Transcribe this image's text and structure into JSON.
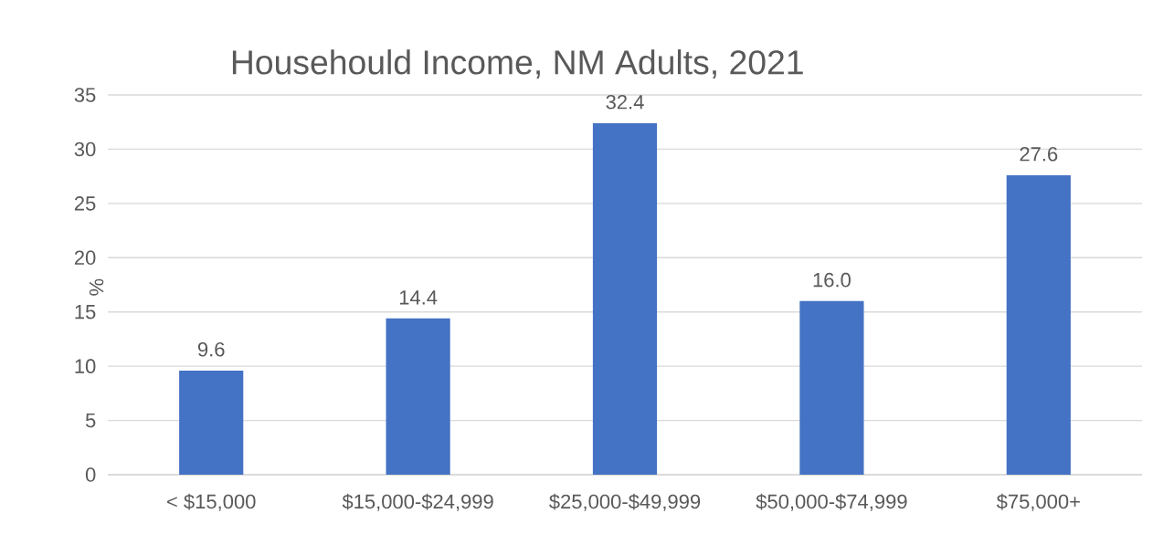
{
  "chart_data": {
    "type": "bar",
    "title": "Househould Income, NM Adults, 2021",
    "ylabel": "%",
    "categories": [
      "< $15,000",
      "$15,000-$24,999",
      "$25,000-$49,999",
      "$50,000-$74,999",
      "$75,000+"
    ],
    "values": [
      9.6,
      14.4,
      32.4,
      16.0,
      27.6
    ],
    "color": "#4472c4",
    "value_labels": [
      "9.6",
      "14.4",
      "32.4",
      "16.0",
      "27.6"
    ],
    "ylim": [
      0,
      35
    ],
    "yticks": [
      0,
      5,
      10,
      15,
      20,
      25,
      30,
      35
    ],
    "grid": "y"
  }
}
